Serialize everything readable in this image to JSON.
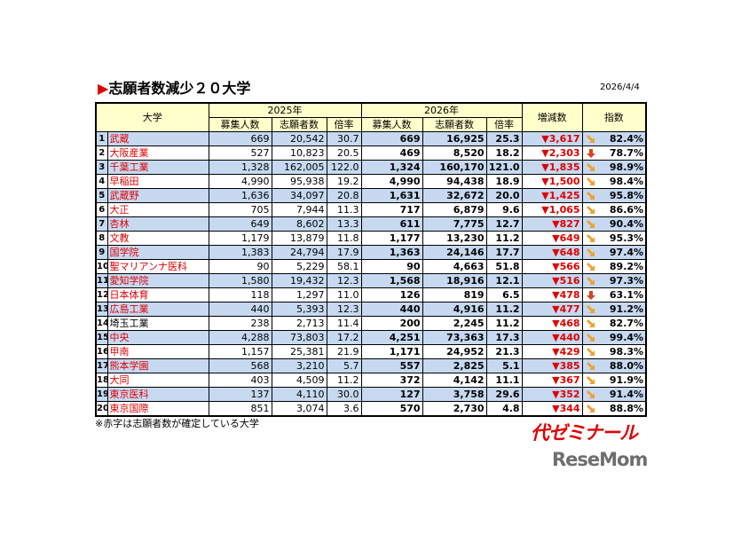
{
  "header": {
    "title": "志願者数減少２０大学",
    "date": "2026/4/4"
  },
  "table": {
    "columns_top": [
      "大学",
      "2025年",
      "2026年",
      "増減数",
      "指数"
    ],
    "columns_sub": [
      "募集人数",
      "志願者数",
      "倍率",
      "募集人数",
      "志願者数",
      "倍率"
    ],
    "stripe_color": "#c6d9f1",
    "header_color": "#ffffcc",
    "rows": [
      [
        "1",
        "武蔵",
        "669",
        "20,542",
        "30.7",
        "669",
        "16,925",
        "25.3",
        "▼3,617",
        "82.4%"
      ],
      [
        "2",
        "大阪産業",
        "527",
        "10,823",
        "20.5",
        "469",
        "8,520",
        "18.2",
        "▼2,303",
        "78.7%"
      ],
      [
        "3",
        "千葉工業",
        "1,328",
        "162,005",
        "122.0",
        "1,324",
        "160,170",
        "121.0",
        "▼1,835",
        "98.9%"
      ],
      [
        "4",
        "早稲田",
        "4,990",
        "95,938",
        "19.2",
        "4,990",
        "94,438",
        "18.9",
        "▼1,500",
        "98.4%"
      ],
      [
        "5",
        "武蔵野",
        "1,636",
        "34,097",
        "20.8",
        "1,631",
        "32,672",
        "20.0",
        "▼1,425",
        "95.8%"
      ],
      [
        "6",
        "大正",
        "705",
        "7,944",
        "11.3",
        "717",
        "6,879",
        "9.6",
        "▼1,065",
        "86.6%"
      ],
      [
        "7",
        "杏林",
        "649",
        "8,602",
        "13.3",
        "611",
        "7,775",
        "12.7",
        "▼827",
        "90.4%"
      ],
      [
        "8",
        "文教",
        "1,179",
        "13,879",
        "11.8",
        "1,177",
        "13,230",
        "11.2",
        "▼649",
        "95.3%"
      ],
      [
        "9",
        "国学院",
        "1,383",
        "24,794",
        "17.9",
        "1,363",
        "24,146",
        "17.7",
        "▼648",
        "97.4%"
      ],
      [
        "10",
        "聖マリアンナ医科",
        "90",
        "5,229",
        "58.1",
        "90",
        "4,663",
        "51.8",
        "▼566",
        "89.2%"
      ],
      [
        "11",
        "愛知学院",
        "1,580",
        "19,432",
        "12.3",
        "1,568",
        "18,916",
        "12.1",
        "▼516",
        "97.3%"
      ],
      [
        "12",
        "日本体育",
        "118",
        "1,297",
        "11.0",
        "126",
        "819",
        "6.5",
        "▼478",
        "63.1%"
      ],
      [
        "13",
        "広島工業",
        "440",
        "5,393",
        "12.3",
        "440",
        "4,916",
        "11.2",
        "▼477",
        "91.2%"
      ],
      [
        "14",
        "埼玉工業",
        "238",
        "2,713",
        "11.4",
        "200",
        "2,245",
        "11.2",
        "▼468",
        "82.7%"
      ],
      [
        "15",
        "中央",
        "4,288",
        "73,803",
        "17.2",
        "4,251",
        "73,363",
        "17.3",
        "▼440",
        "99.4%"
      ],
      [
        "16",
        "甲南",
        "1,157",
        "25,381",
        "21.9",
        "1,171",
        "24,952",
        "21.3",
        "▼429",
        "98.3%"
      ],
      [
        "17",
        "熊本学園",
        "568",
        "3,210",
        "5.7",
        "557",
        "2,825",
        "5.1",
        "▼385",
        "88.0%"
      ],
      [
        "18",
        "大同",
        "403",
        "4,509",
        "11.2",
        "372",
        "4,142",
        "11.1",
        "▼367",
        "91.9%"
      ],
      [
        "19",
        "東京医科",
        "137",
        "4,110",
        "30.0",
        "127",
        "3,758",
        "29.6",
        "▼352",
        "91.4%"
      ],
      [
        "20",
        "東京国際",
        "851",
        "3,074",
        "3.6",
        "570",
        "2,730",
        "4.8",
        "▼344",
        "88.8%"
      ]
    ],
    "name_colors": [
      "#e00000",
      "#e00000",
      "#e00000",
      "#e00000",
      "#e00000",
      "#e00000",
      "#e00000",
      "#e00000",
      "#e00000",
      "#e00000",
      "#e00000",
      "#e00000",
      "#e00000",
      "#000000",
      "#e00000",
      "#e00000",
      "#e00000",
      "#e00000",
      "#e00000",
      "#e00000"
    ],
    "icons": [
      "down-right",
      "down",
      "down-right",
      "down-right",
      "down-right",
      "down-right",
      "down-right",
      "down-right",
      "down-right",
      "down-right",
      "down-right",
      "down",
      "down-right",
      "down-right",
      "down-right",
      "down-right",
      "down-right",
      "down-right",
      "down-right",
      "down-right"
    ]
  },
  "footnote": "※赤字は志願者数が確定している大学",
  "logos": {
    "yozemi": "代ゼミナール",
    "resemom": "ReseMom"
  }
}
